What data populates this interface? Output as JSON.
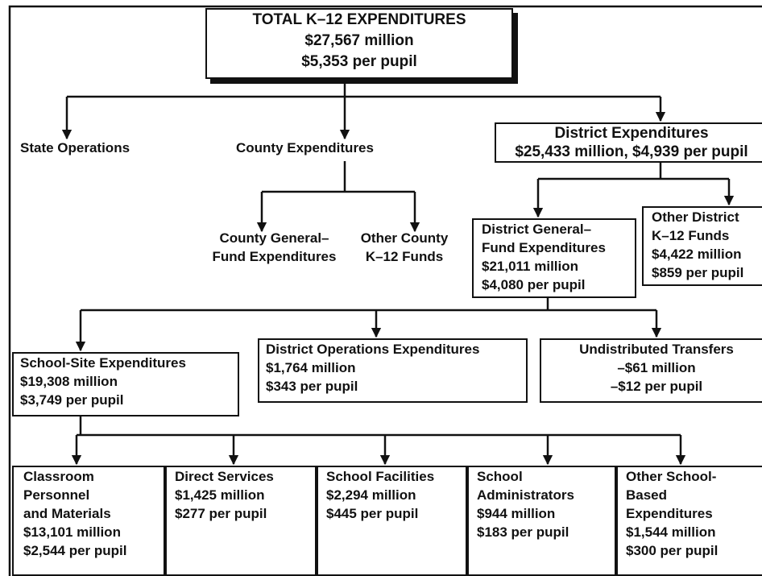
{
  "nodes": [
    {
      "lines": [
        "TOTAL K–12 EXPENDITURES",
        "$27,567 million",
        "$5,353 per pupil"
      ]
    },
    {
      "lines": [
        "State Operations"
      ]
    },
    {
      "lines": [
        "County Expenditures"
      ]
    },
    {
      "lines": [
        "County General–",
        "Fund Expenditures"
      ]
    },
    {
      "lines": [
        "Other County",
        "K–12 Funds"
      ]
    },
    {
      "lines": [
        "District Expenditures",
        "$25,433 million, $4,939 per pupil"
      ]
    },
    {
      "lines": [
        "District General–",
        "Fund Expenditures",
        "$21,011 million",
        "$4,080 per pupil"
      ]
    },
    {
      "lines": [
        "Other District",
        "K–12 Funds",
        "$4,422 million",
        "$859 per pupil"
      ]
    },
    {
      "lines": [
        "School-Site Expenditures",
        "$19,308 million",
        "$3,749 per pupil"
      ]
    },
    {
      "lines": [
        "District Operations Expenditures",
        "$1,764 million",
        "$343 per pupil"
      ]
    },
    {
      "lines": [
        "Undistributed Transfers",
        "–$61 million",
        "–$12 per pupil"
      ]
    },
    {
      "lines": [
        "Classroom",
        "Personnel",
        "and Materials",
        "$13,101 million",
        "$2,544 per pupil"
      ]
    },
    {
      "lines": [
        "Direct Services",
        "$1,425 million",
        "$277 per pupil"
      ]
    },
    {
      "lines": [
        "School Facilities",
        "$2,294 million",
        "$445 per pupil"
      ]
    },
    {
      "lines": [
        "School",
        "Administrators",
        "$944 million",
        "$183 per pupil"
      ]
    },
    {
      "lines": [
        "Other School-",
        "Based",
        "Expenditures",
        "$1,544 million",
        "$300 per pupil"
      ]
    }
  ]
}
